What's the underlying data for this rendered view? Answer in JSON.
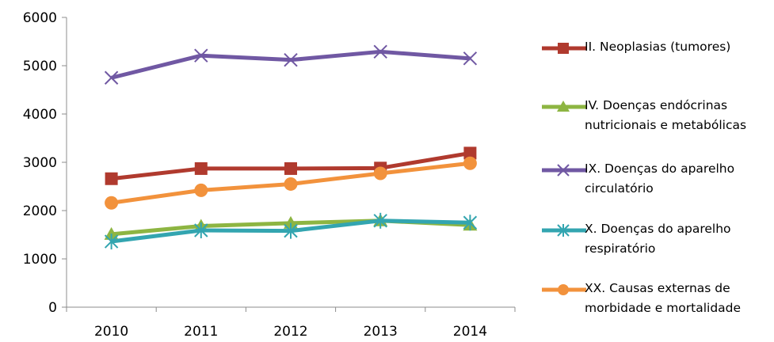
{
  "chart_data": {
    "type": "line",
    "x": [
      "2010",
      "2011",
      "2012",
      "2013",
      "2014"
    ],
    "ylim": [
      0,
      6000
    ],
    "yticks": [
      "0",
      "1000",
      "2000",
      "3000",
      "4000",
      "5000",
      "6000"
    ],
    "grid": false,
    "legend_position": "right",
    "series": [
      {
        "name": "II.  Neoplasias (tumores)",
        "values": [
          2660,
          2870,
          2870,
          2880,
          3190
        ],
        "color": "#b03a2e",
        "marker": "square"
      },
      {
        "name": "IV.  Doenças endócrinas\nnutricionais e metabólicas",
        "values": [
          1510,
          1680,
          1740,
          1790,
          1700
        ],
        "color": "#8db542",
        "marker": "triangle"
      },
      {
        "name": "IX.  Doenças do aparelho\ncirculatório",
        "values": [
          4750,
          5210,
          5120,
          5290,
          5150
        ],
        "color": "#7058a3",
        "marker": "x"
      },
      {
        "name": "X.   Doenças do aparelho\nrespiratório",
        "values": [
          1360,
          1590,
          1580,
          1790,
          1750
        ],
        "color": "#33a5b0",
        "marker": "star"
      },
      {
        "name": "XX.  Causas externas de\nmorbidade e mortalidade",
        "values": [
          2160,
          2420,
          2550,
          2770,
          2980
        ],
        "color": "#f2923c",
        "marker": "circle"
      }
    ]
  }
}
